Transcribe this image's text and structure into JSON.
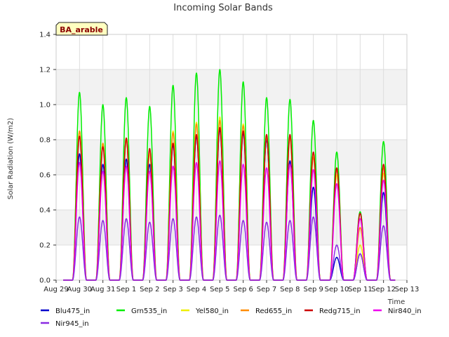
{
  "chart_data": {
    "type": "line",
    "title": "Incoming Solar Bands",
    "xlabel": "Time",
    "ylabel": "Solar Radiation (W/m2)",
    "badge": "BA_arable",
    "x_ticks": [
      "Aug 29",
      "Aug 30",
      "Aug 31",
      "Sep 1",
      "Sep 2",
      "Sep 3",
      "Sep 4",
      "Sep 5",
      "Sep 6",
      "Sep 7",
      "Sep 8",
      "Sep 9",
      "Sep 10",
      "Sep 11",
      "Sep 12",
      "Sep 13"
    ],
    "y_ticks": [
      "0.0",
      "0.2",
      "0.4",
      "0.6",
      "0.8",
      "1.0",
      "1.2",
      "1.4"
    ],
    "ylim": [
      0,
      1.4
    ],
    "xlim": [
      0,
      15
    ],
    "grid": true,
    "legend_position": "bottom",
    "peak_days": [
      1,
      2,
      3,
      4,
      5,
      6,
      7,
      8,
      9,
      10,
      11,
      12,
      13,
      14
    ],
    "series": [
      {
        "name": "Blu475_in",
        "color": "#0000cc",
        "peaks": [
          0.72,
          0.66,
          0.69,
          0.66,
          0.77,
          0.82,
          0.86,
          0.84,
          0.8,
          0.68,
          0.53,
          0.13,
          0.15,
          0.5
        ]
      },
      {
        "name": "Grn535_in",
        "color": "#00ee00",
        "peaks": [
          1.07,
          1.0,
          1.04,
          0.99,
          1.11,
          1.18,
          1.2,
          1.13,
          1.04,
          1.03,
          0.91,
          0.73,
          0.39,
          0.79
        ]
      },
      {
        "name": "Yel580_in",
        "color": "#eeee00",
        "peaks": [
          0.85,
          0.78,
          0.81,
          0.72,
          0.85,
          0.9,
          0.93,
          0.89,
          0.82,
          0.82,
          0.72,
          0.6,
          0.2,
          0.61
        ]
      },
      {
        "name": "Red655_in",
        "color": "#ff8c00",
        "peaks": [
          0.85,
          0.78,
          0.8,
          0.74,
          0.84,
          0.89,
          0.91,
          0.88,
          0.82,
          0.81,
          0.7,
          0.63,
          0.3,
          0.64
        ]
      },
      {
        "name": "Redg715_in",
        "color": "#cc0000",
        "peaks": [
          0.82,
          0.76,
          0.81,
          0.75,
          0.78,
          0.83,
          0.87,
          0.85,
          0.83,
          0.83,
          0.73,
          0.64,
          0.38,
          0.66
        ]
      },
      {
        "name": "Nir840_in",
        "color": "#ee00ee",
        "peaks": [
          0.67,
          0.62,
          0.65,
          0.62,
          0.65,
          0.67,
          0.68,
          0.66,
          0.64,
          0.66,
          0.63,
          0.55,
          0.35,
          0.57
        ]
      },
      {
        "name": "Nir945_in",
        "color": "#8a2be2",
        "peaks": [
          0.36,
          0.34,
          0.35,
          0.33,
          0.35,
          0.36,
          0.37,
          0.34,
          0.33,
          0.34,
          0.36,
          0.2,
          0.15,
          0.31
        ]
      }
    ]
  }
}
